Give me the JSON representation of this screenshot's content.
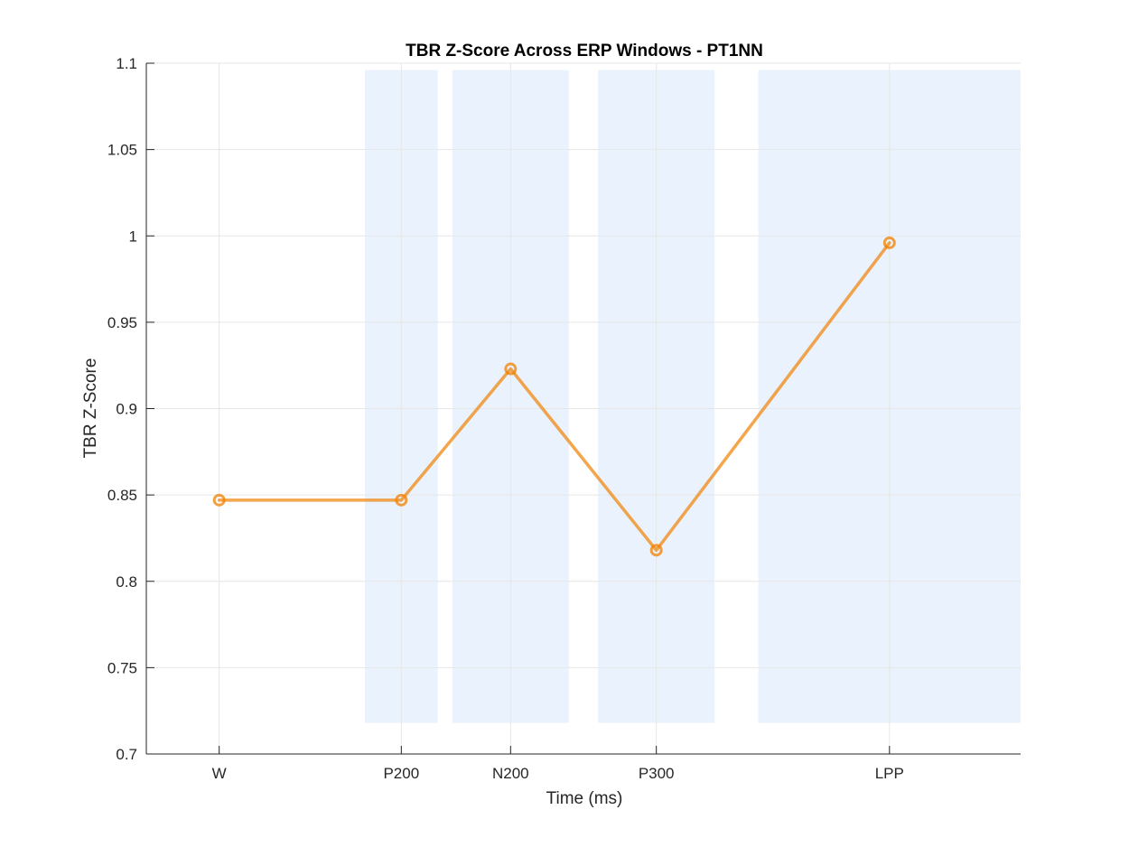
{
  "chart_data": {
    "type": "line",
    "title": "TBR Z-Score Across ERP Windows - PT1NN",
    "xlabel": "Time (ms)",
    "ylabel": "TBR Z-Score",
    "ylim": [
      0.7,
      1.1
    ],
    "yticks": [
      "0.7",
      "0.75",
      "0.8",
      "0.85",
      "0.9",
      "0.95",
      "1",
      "1.05",
      "1.1"
    ],
    "categories": [
      "W",
      "P200",
      "N200",
      "P300",
      "LPP"
    ],
    "x": [
      -100,
      150,
      300,
      500,
      820
    ],
    "xlim": [
      -200,
      1000
    ],
    "values": [
      0.847,
      0.847,
      0.923,
      0.818,
      0.996
    ],
    "windows": [
      {
        "name": "P200",
        "start": 100,
        "end": 200
      },
      {
        "name": "N200",
        "start": 220,
        "end": 380
      },
      {
        "name": "P300",
        "start": 420,
        "end": 580
      },
      {
        "name": "LPP",
        "start": 640,
        "end": 1000
      }
    ],
    "window_ylim": [
      0.718,
      1.096
    ],
    "grid": true,
    "colors": {
      "line": "#F08000",
      "window_fill": "#EAF3FD",
      "grid": "#E6E6E6",
      "axis": "#262626"
    }
  }
}
